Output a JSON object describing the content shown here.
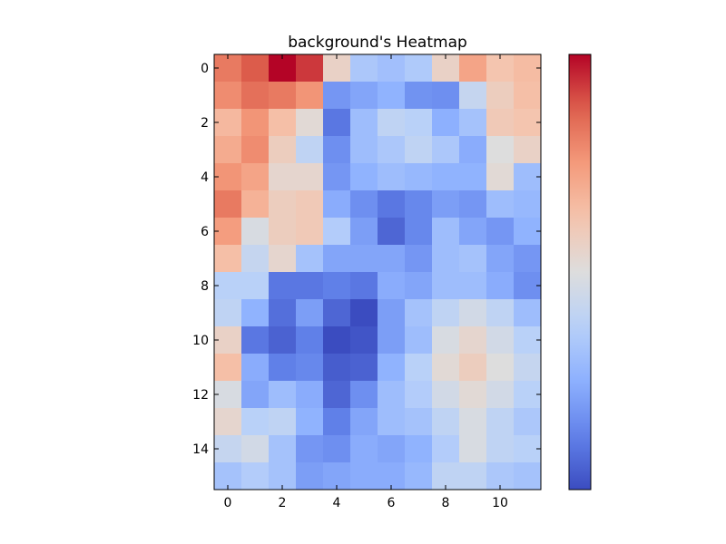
{
  "chart_data": {
    "type": "heatmap",
    "title": "background's Heatmap",
    "xlabel": "",
    "ylabel": "",
    "colormap": "coolwarm",
    "colorbar": true,
    "grid": false,
    "n_rows": 16,
    "n_cols": 12,
    "x_ticks": [
      0,
      2,
      4,
      6,
      8,
      10
    ],
    "y_ticks": [
      0,
      2,
      4,
      6,
      8,
      10,
      12,
      14
    ],
    "vmin": 0,
    "vmax": 1,
    "values": [
      [
        0.82,
        0.88,
        1.0,
        0.93,
        0.56,
        0.34,
        0.31,
        0.35,
        0.56,
        0.72,
        0.62,
        0.65
      ],
      [
        0.78,
        0.84,
        0.82,
        0.76,
        0.18,
        0.22,
        0.26,
        0.17,
        0.16,
        0.42,
        0.58,
        0.64
      ],
      [
        0.66,
        0.76,
        0.64,
        0.52,
        0.1,
        0.3,
        0.4,
        0.38,
        0.25,
        0.32,
        0.6,
        0.62
      ],
      [
        0.7,
        0.78,
        0.58,
        0.4,
        0.16,
        0.3,
        0.34,
        0.4,
        0.34,
        0.24,
        0.5,
        0.56
      ],
      [
        0.76,
        0.72,
        0.54,
        0.54,
        0.18,
        0.26,
        0.3,
        0.28,
        0.26,
        0.26,
        0.52,
        0.3
      ],
      [
        0.82,
        0.68,
        0.58,
        0.6,
        0.24,
        0.16,
        0.1,
        0.14,
        0.2,
        0.18,
        0.3,
        0.28
      ],
      [
        0.74,
        0.48,
        0.58,
        0.6,
        0.36,
        0.2,
        0.06,
        0.14,
        0.3,
        0.22,
        0.18,
        0.26
      ],
      [
        0.64,
        0.42,
        0.54,
        0.32,
        0.22,
        0.22,
        0.22,
        0.18,
        0.3,
        0.32,
        0.22,
        0.18
      ],
      [
        0.38,
        0.38,
        0.1,
        0.1,
        0.12,
        0.1,
        0.24,
        0.22,
        0.3,
        0.3,
        0.24,
        0.16
      ],
      [
        0.4,
        0.26,
        0.08,
        0.2,
        0.06,
        0.0,
        0.2,
        0.32,
        0.4,
        0.46,
        0.4,
        0.3
      ],
      [
        0.56,
        0.1,
        0.05,
        0.12,
        0.0,
        0.02,
        0.2,
        0.3,
        0.48,
        0.54,
        0.46,
        0.38
      ],
      [
        0.64,
        0.24,
        0.12,
        0.14,
        0.04,
        0.05,
        0.26,
        0.38,
        0.52,
        0.58,
        0.5,
        0.42
      ],
      [
        0.48,
        0.22,
        0.3,
        0.24,
        0.06,
        0.16,
        0.3,
        0.36,
        0.46,
        0.52,
        0.46,
        0.38
      ],
      [
        0.54,
        0.38,
        0.4,
        0.26,
        0.12,
        0.22,
        0.3,
        0.32,
        0.4,
        0.48,
        0.4,
        0.34
      ],
      [
        0.42,
        0.46,
        0.32,
        0.18,
        0.16,
        0.24,
        0.22,
        0.26,
        0.36,
        0.48,
        0.4,
        0.38
      ],
      [
        0.32,
        0.36,
        0.32,
        0.2,
        0.22,
        0.24,
        0.24,
        0.28,
        0.4,
        0.4,
        0.34,
        0.32
      ]
    ]
  }
}
